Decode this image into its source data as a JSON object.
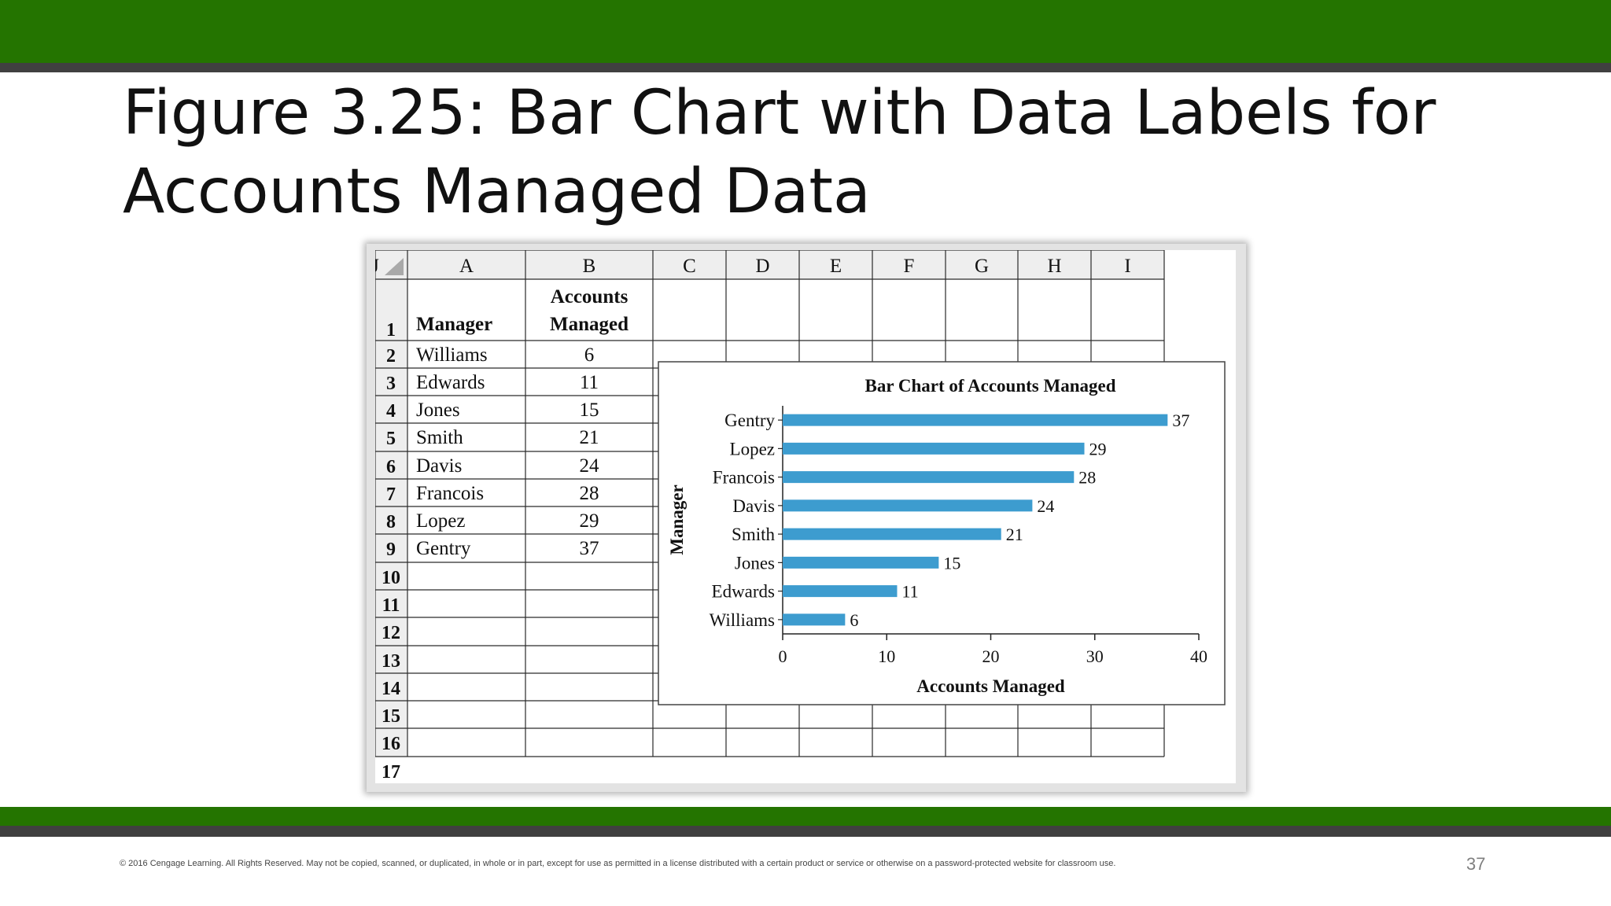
{
  "slide": {
    "title": "Figure 3.25: Bar Chart with Data Labels for Accounts Managed Data",
    "footer": "© 2016 Cengage Learning.  All Rights Reserved.  May not be copied, scanned, or duplicated, in whole or in part, except for use as permitted in a license distributed with a certain product or service or otherwise on a password-protected website for classroom use.",
    "page_number": "37"
  },
  "spreadsheet": {
    "columns": [
      "A",
      "B",
      "C",
      "D",
      "E",
      "F",
      "G",
      "H",
      "I",
      "J"
    ],
    "rows": [
      "1",
      "2",
      "3",
      "4",
      "5",
      "6",
      "7",
      "8",
      "9",
      "10",
      "11",
      "12",
      "13",
      "14",
      "15",
      "16",
      "17"
    ],
    "header_row": [
      "Manager",
      "Accounts Managed"
    ],
    "data": [
      [
        "Williams",
        "6"
      ],
      [
        "Edwards",
        "11"
      ],
      [
        "Jones",
        "15"
      ],
      [
        "Smith",
        "21"
      ],
      [
        "Davis",
        "24"
      ],
      [
        "Francois",
        "28"
      ],
      [
        "Lopez",
        "29"
      ],
      [
        "Gentry",
        "37"
      ]
    ]
  },
  "chart_data": {
    "type": "bar",
    "orientation": "horizontal",
    "title": "Bar Chart of Accounts Managed",
    "xlabel": "Accounts Managed",
    "ylabel": "Manager",
    "categories": [
      "Gentry",
      "Lopez",
      "Francois",
      "Davis",
      "Smith",
      "Jones",
      "Edwards",
      "Williams"
    ],
    "values": [
      37,
      29,
      28,
      24,
      21,
      15,
      11,
      6
    ],
    "data_labels": true,
    "xlim": [
      0,
      40
    ],
    "xticks": [
      0,
      10,
      20,
      30,
      40
    ],
    "grid": false,
    "bar_color": "#3d9ccf"
  }
}
